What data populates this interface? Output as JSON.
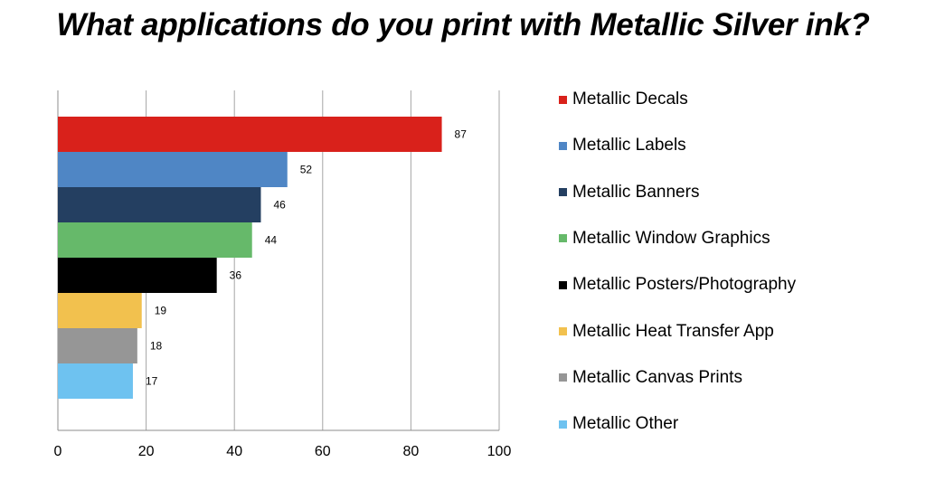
{
  "chart_data": {
    "type": "bar",
    "orientation": "horizontal",
    "title": "What applications do you print with Metallic Silver ink?",
    "xlabel": "",
    "ylabel": "",
    "xlim": [
      0,
      100
    ],
    "xticks": [
      0,
      20,
      40,
      60,
      80,
      100
    ],
    "grid": true,
    "legend_position": "right",
    "series": [
      {
        "name": "Metallic Decals",
        "value": 87,
        "color": "#d9211b"
      },
      {
        "name": "Metallic Labels",
        "value": 52,
        "color": "#4f86c5"
      },
      {
        "name": "Metallic Banners",
        "value": 46,
        "color": "#243f61"
      },
      {
        "name": "Metallic Window Graphics",
        "value": 44,
        "color": "#66b96a"
      },
      {
        "name": "Metallic Posters/Photography",
        "value": 36,
        "color": "#000000"
      },
      {
        "name": "Metallic Heat Transfer App",
        "value": 19,
        "color": "#f2c14e"
      },
      {
        "name": "Metallic Canvas Prints",
        "value": 18,
        "color": "#969696"
      },
      {
        "name": "Metallic Other",
        "value": 17,
        "color": "#6ec2f0"
      }
    ]
  }
}
